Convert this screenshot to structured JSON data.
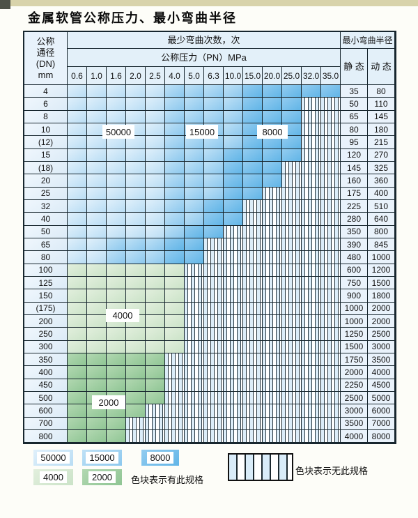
{
  "page": {
    "title": "金属软管公称压力、最小弯曲半径"
  },
  "table": {
    "header": {
      "dn_lines": [
        "公称",
        "通径",
        "(DN)",
        "mm"
      ],
      "bend_times": "最少弯曲次数，次",
      "pressure": "公称压力（PN）MPa",
      "min_radius": "最小弯曲半径",
      "static": "静 态",
      "dynamic": "动 态",
      "pressure_values": [
        "0.6",
        "1.0",
        "1.6",
        "2.0",
        "2.5",
        "4.0",
        "5.0",
        "6.3",
        "10.0",
        "15.0",
        "20.0",
        "25.0",
        "32.0",
        "35.0"
      ]
    },
    "overlay_labels": {
      "l50000": "50000",
      "l15000": "15000",
      "l8000": "8000",
      "l4000": "4000",
      "l2000": "2000"
    },
    "rows": [
      {
        "dn": "4",
        "static": "35",
        "dynamic": "80",
        "cells": [
          "50000",
          "50000",
          "50000",
          "50000",
          "50000",
          "15000",
          "15000",
          "15000",
          "15000",
          "8000",
          "8000",
          "8000",
          "8000",
          "8000"
        ]
      },
      {
        "dn": "6",
        "static": "50",
        "dynamic": "110",
        "cells": [
          "50000",
          "50000",
          "50000",
          "50000",
          "50000",
          "15000",
          "15000",
          "15000",
          "15000",
          "8000",
          "8000",
          "8000",
          null,
          null
        ]
      },
      {
        "dn": "8",
        "static": "65",
        "dynamic": "145",
        "cells": [
          "50000",
          "50000",
          "50000",
          "50000",
          "50000",
          "15000",
          "15000",
          "15000",
          "15000",
          "8000",
          "8000",
          "8000",
          null,
          null
        ]
      },
      {
        "dn": "10",
        "static": "80",
        "dynamic": "180",
        "cells": [
          "50000",
          "50000",
          "50000",
          "50000",
          "50000",
          "15000",
          "15000",
          "15000",
          "15000",
          "8000",
          "8000",
          "8000",
          null,
          null
        ]
      },
      {
        "dn": "(12)",
        "static": "95",
        "dynamic": "215",
        "cells": [
          "50000",
          "50000",
          "50000",
          "50000",
          "50000",
          "15000",
          "15000",
          "15000",
          "15000",
          "8000",
          "8000",
          "8000",
          null,
          null
        ]
      },
      {
        "dn": "15",
        "static": "120",
        "dynamic": "270",
        "cells": [
          "50000",
          "50000",
          "50000",
          "50000",
          "50000",
          "15000",
          "15000",
          "15000",
          "8000",
          "8000",
          "8000",
          "8000",
          null,
          null
        ]
      },
      {
        "dn": "(18)",
        "static": "145",
        "dynamic": "325",
        "cells": [
          "50000",
          "50000",
          "50000",
          "50000",
          "50000",
          "15000",
          "15000",
          "15000",
          "8000",
          "8000",
          "8000",
          null,
          null,
          null
        ]
      },
      {
        "dn": "20",
        "static": "160",
        "dynamic": "360",
        "cells": [
          "50000",
          "50000",
          "50000",
          "50000",
          "50000",
          "15000",
          "15000",
          "15000",
          "8000",
          "8000",
          "8000",
          null,
          null,
          null
        ]
      },
      {
        "dn": "25",
        "static": "175",
        "dynamic": "400",
        "cells": [
          "50000",
          "50000",
          "50000",
          "50000",
          "50000",
          "15000",
          "15000",
          "15000",
          "8000",
          "8000",
          null,
          null,
          null,
          null
        ]
      },
      {
        "dn": "32",
        "static": "225",
        "dynamic": "510",
        "cells": [
          "50000",
          "50000",
          "50000",
          "50000",
          "50000",
          "15000",
          "15000",
          "8000",
          "8000",
          null,
          null,
          null,
          null,
          null
        ]
      },
      {
        "dn": "40",
        "static": "280",
        "dynamic": "640",
        "cells": [
          "50000",
          "50000",
          "50000",
          "50000",
          "50000",
          "15000",
          "15000",
          "8000",
          "8000",
          null,
          null,
          null,
          null,
          null
        ]
      },
      {
        "dn": "50",
        "static": "350",
        "dynamic": "800",
        "cells": [
          "50000",
          "50000",
          "50000",
          "50000",
          "50000",
          "15000",
          "8000",
          "8000",
          null,
          null,
          null,
          null,
          null,
          null
        ]
      },
      {
        "dn": "65",
        "static": "390",
        "dynamic": "845",
        "cells": [
          "50000",
          "50000",
          "15000",
          "15000",
          "15000",
          "8000",
          "8000",
          null,
          null,
          null,
          null,
          null,
          null,
          null
        ]
      },
      {
        "dn": "80",
        "static": "480",
        "dynamic": "1000",
        "cells": [
          "50000",
          "50000",
          "15000",
          "15000",
          "15000",
          "8000",
          "8000",
          null,
          null,
          null,
          null,
          null,
          null,
          null
        ]
      },
      {
        "dn": "100",
        "static": "600",
        "dynamic": "1200",
        "cells": [
          "4000",
          "4000",
          "4000",
          "4000",
          "4000",
          "4000",
          null,
          null,
          null,
          null,
          null,
          null,
          null,
          null
        ]
      },
      {
        "dn": "125",
        "static": "750",
        "dynamic": "1500",
        "cells": [
          "4000",
          "4000",
          "4000",
          "4000",
          "4000",
          "4000",
          null,
          null,
          null,
          null,
          null,
          null,
          null,
          null
        ]
      },
      {
        "dn": "150",
        "static": "900",
        "dynamic": "1800",
        "cells": [
          "4000",
          "4000",
          "4000",
          "4000",
          "4000",
          "4000",
          null,
          null,
          null,
          null,
          null,
          null,
          null,
          null
        ]
      },
      {
        "dn": "(175)",
        "static": "1000",
        "dynamic": "2000",
        "cells": [
          "4000",
          "4000",
          "4000",
          "4000",
          "4000",
          "4000",
          null,
          null,
          null,
          null,
          null,
          null,
          null,
          null
        ]
      },
      {
        "dn": "200",
        "static": "1000",
        "dynamic": "2000",
        "cells": [
          "4000",
          "4000",
          "4000",
          "4000",
          "4000",
          "4000",
          null,
          null,
          null,
          null,
          null,
          null,
          null,
          null
        ]
      },
      {
        "dn": "250",
        "static": "1250",
        "dynamic": "2500",
        "cells": [
          "4000",
          "4000",
          "4000",
          "4000",
          "4000",
          "4000",
          null,
          null,
          null,
          null,
          null,
          null,
          null,
          null
        ]
      },
      {
        "dn": "300",
        "static": "1500",
        "dynamic": "3000",
        "cells": [
          "4000",
          "4000",
          "4000",
          "4000",
          "4000",
          "4000",
          null,
          null,
          null,
          null,
          null,
          null,
          null,
          null
        ]
      },
      {
        "dn": "350",
        "static": "1750",
        "dynamic": "3500",
        "cells": [
          "2000",
          "2000",
          "2000",
          "2000",
          "2000",
          null,
          null,
          null,
          null,
          null,
          null,
          null,
          null,
          null
        ]
      },
      {
        "dn": "400",
        "static": "2000",
        "dynamic": "4000",
        "cells": [
          "2000",
          "2000",
          "2000",
          "2000",
          "2000",
          null,
          null,
          null,
          null,
          null,
          null,
          null,
          null,
          null
        ]
      },
      {
        "dn": "450",
        "static": "2250",
        "dynamic": "4500",
        "cells": [
          "2000",
          "2000",
          "2000",
          "2000",
          "2000",
          null,
          null,
          null,
          null,
          null,
          null,
          null,
          null,
          null
        ]
      },
      {
        "dn": "500",
        "static": "2500",
        "dynamic": "5000",
        "cells": [
          "2000",
          "2000",
          "2000",
          "2000",
          "2000",
          null,
          null,
          null,
          null,
          null,
          null,
          null,
          null,
          null
        ]
      },
      {
        "dn": "600",
        "static": "3000",
        "dynamic": "6000",
        "cells": [
          "2000",
          "2000",
          "2000",
          "2000",
          null,
          null,
          null,
          null,
          null,
          null,
          null,
          null,
          null,
          null
        ]
      },
      {
        "dn": "700",
        "static": "3500",
        "dynamic": "7000",
        "cells": [
          "2000",
          "2000",
          "2000",
          null,
          null,
          null,
          null,
          null,
          null,
          null,
          null,
          null,
          null,
          null
        ]
      },
      {
        "dn": "800",
        "static": "4000",
        "dynamic": "8000",
        "cells": [
          "2000",
          "2000",
          "2000",
          null,
          null,
          null,
          null,
          null,
          null,
          null,
          null,
          null,
          null,
          null
        ]
      }
    ]
  },
  "legend": {
    "blocks": [
      {
        "value": "50000",
        "color": "#b9ddf4"
      },
      {
        "value": "15000",
        "color": "#8cc8ee"
      },
      {
        "value": "8000",
        "color": "#61b5e7"
      },
      {
        "value": "4000",
        "color": "#cbe3c8"
      },
      {
        "value": "2000",
        "color": "#8fc594"
      }
    ],
    "has_spec_text": "色块表示有此规格",
    "no_spec_text": "色块表示无此规格"
  },
  "colors": {
    "grid_line": "#17262e",
    "header_bg": "#e3f0f9",
    "zone_50000": "#b9ddf4",
    "zone_15000": "#8cc8ee",
    "zone_8000": "#61b5e7",
    "zone_4000": "#cbe3c8",
    "zone_2000": "#8fc594",
    "top_strip": "#d8d3ab"
  }
}
